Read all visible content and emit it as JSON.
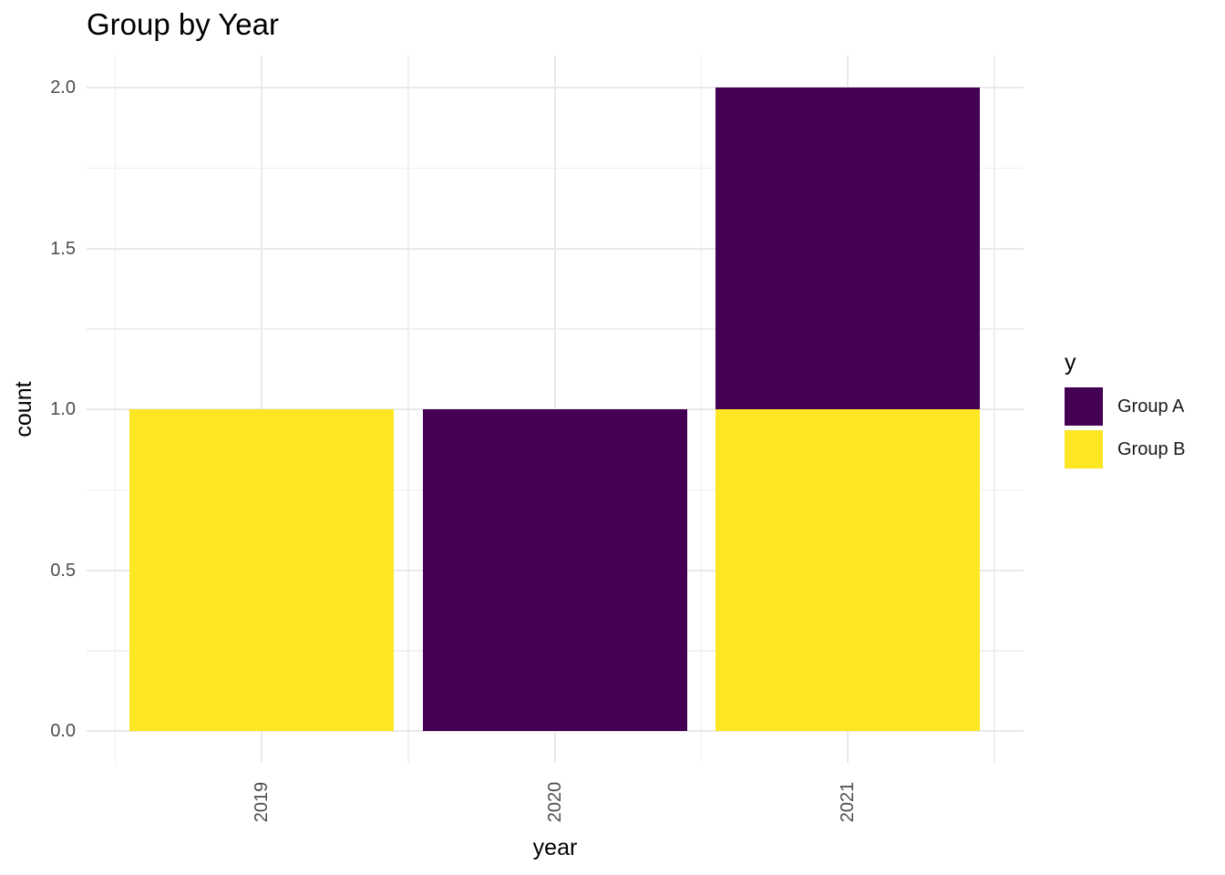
{
  "page": {
    "background": "#FFFFFF"
  },
  "chart_data": {
    "type": "bar",
    "stacked": true,
    "title": "Group by Year",
    "xlabel": "year",
    "ylabel": "count",
    "legend": {
      "title": "y",
      "position": "right"
    },
    "categories": [
      "2019",
      "2020",
      "2021"
    ],
    "series": [
      {
        "name": "Group A",
        "color": "#440154",
        "values": [
          0,
          1,
          1
        ]
      },
      {
        "name": "Group B",
        "color": "#FDE725",
        "values": [
          1,
          0,
          1
        ]
      }
    ],
    "stack_order_bottom_to_top": [
      "Group B",
      "Group A"
    ],
    "totals": [
      1,
      1,
      2
    ],
    "ylim": [
      0,
      2
    ],
    "y_ticks": [
      {
        "value": 0.0,
        "label": "0.0"
      },
      {
        "value": 0.5,
        "label": "0.5"
      },
      {
        "value": 1.0,
        "label": "1.0"
      },
      {
        "value": 1.5,
        "label": "1.5"
      },
      {
        "value": 2.0,
        "label": "2.0"
      }
    ],
    "y_minor_ticks": [
      0.25,
      0.75,
      1.25,
      1.75
    ],
    "bar_rel_width": 0.9,
    "x_tick_rotation_deg": 90,
    "grid": {
      "show_major": true,
      "show_minor": true,
      "major_color": "#E9E9E9",
      "minor_color": "#F0F0F0"
    },
    "text_colors": {
      "title": "#000000",
      "axis_title": "#000000",
      "tick_label": "#4D4D4D",
      "legend_label": "#1A1A1A"
    }
  }
}
